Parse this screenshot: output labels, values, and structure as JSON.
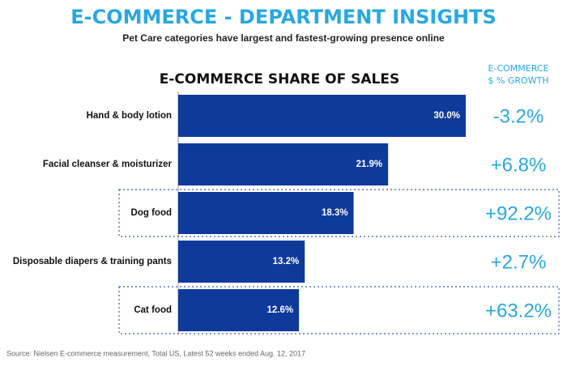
{
  "chart_data": {
    "type": "bar",
    "title": "E-COMMERCE - DEPARTMENT INSIGHTS",
    "subtitle": "Pet Care categories have largest and fastest-growing presence online",
    "chart_heading": "E-COMMERCE SHARE OF SALES",
    "growth_header": [
      "E-COMMERCE",
      "$ % GROWTH"
    ],
    "categories": [
      "Hand & body lotion",
      "Facial cleanser & moisturizer",
      "Dog food",
      "Disposable diapers & training pants",
      "Cat food"
    ],
    "values": [
      30.0,
      21.9,
      18.3,
      13.2,
      12.6
    ],
    "value_labels": [
      "30.0%",
      "21.9%",
      "18.3%",
      "13.2%",
      "12.6%"
    ],
    "color": "#0e3a9c",
    "growth": [
      "-3.2%",
      "+6.8%",
      "+92.2%",
      "+2.7%",
      "+63.2%"
    ],
    "highlighted": [
      false,
      false,
      true,
      false,
      true
    ],
    "source": "Source: Nielsen E-commerce measurement, Total US, Latest 52 weeks ended Aug. 12, 2017"
  }
}
